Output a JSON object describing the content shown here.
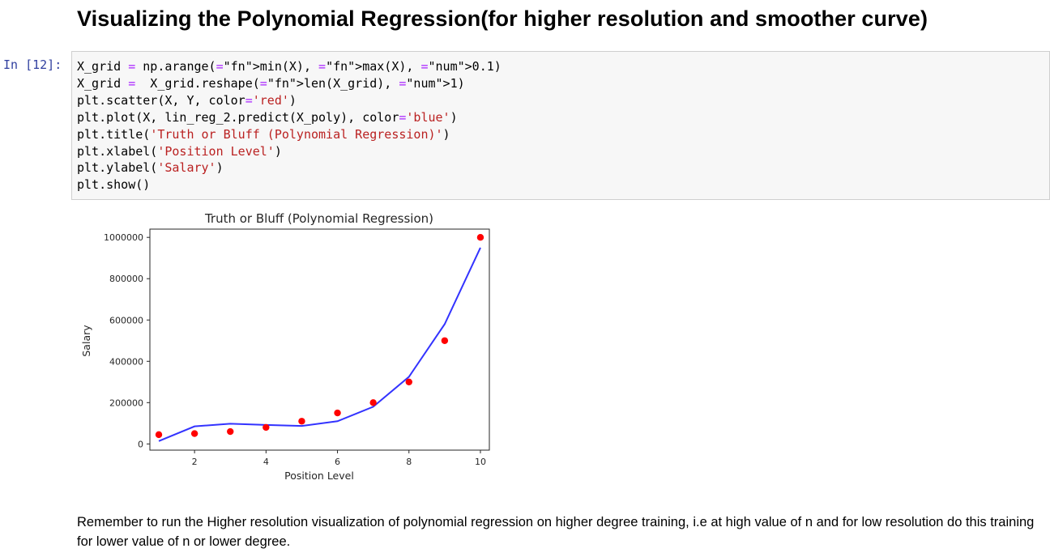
{
  "heading": "Visualizing the Polynomial Regression(for higher resolution and smoother curve)",
  "cell": {
    "prompt": "In [12]:",
    "code_lines": [
      "X_grid = np.arange(min(X), max(X), 0.1)",
      "X_grid =  X_grid.reshape(len(X_grid), 1)",
      "plt.scatter(X, Y, color='red')",
      "plt.plot(X, lin_reg_2.predict(X_poly), color='blue')",
      "plt.title('Truth or Bluff (Polynomial Regression)')",
      "plt.xlabel('Position Level')",
      "plt.ylabel('Salary')",
      "plt.show()"
    ]
  },
  "chart_data": {
    "type": "scatter",
    "title": "Truth or Bluff (Polynomial Regression)",
    "xlabel": "Position Level",
    "ylabel": "Salary",
    "xlim": [
      0.75,
      10.25
    ],
    "ylim": [
      -30000,
      1040000
    ],
    "x_ticks": [
      2,
      4,
      6,
      8,
      10
    ],
    "y_ticks": [
      0,
      200000,
      400000,
      600000,
      800000,
      1000000
    ],
    "grid": false,
    "series": [
      {
        "kind": "scatter",
        "color": "#ff0000",
        "x": [
          1,
          2,
          3,
          4,
          5,
          6,
          7,
          8,
          9,
          10
        ],
        "y": [
          45000,
          50000,
          60000,
          80000,
          110000,
          150000,
          200000,
          300000,
          500000,
          1000000
        ]
      },
      {
        "kind": "line",
        "color": "#3333ff",
        "x": [
          1,
          2,
          3,
          4,
          5,
          6,
          7,
          8,
          9,
          10
        ],
        "y": [
          14000,
          85000,
          98000,
          92000,
          87000,
          110000,
          180000,
          325000,
          580000,
          950000
        ]
      }
    ]
  },
  "markdown_text": "Remember to run the Higher resolution visualization of polynomial regression on higher degree training, i.e at high value of n and for low resolution do this training for lower value of n or lower degree."
}
